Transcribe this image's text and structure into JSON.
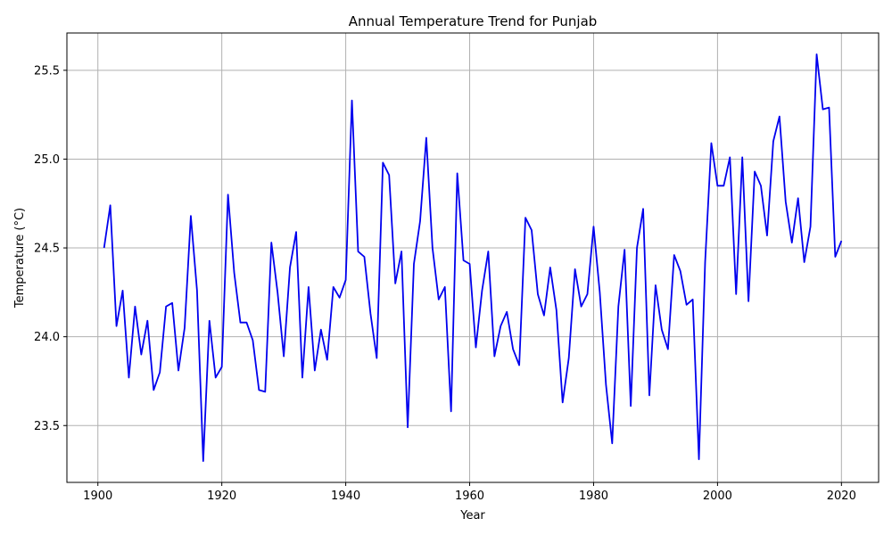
{
  "chart_data": {
    "type": "line",
    "title": "Annual Temperature Trend for Punjab",
    "xlabel": "Year",
    "ylabel": "Temperature (°C)",
    "xlim": [
      1895,
      2026
    ],
    "ylim": [
      23.18,
      25.71
    ],
    "xticks": [
      1900,
      1920,
      1940,
      1960,
      1980,
      2000,
      2020
    ],
    "yticks": [
      23.5,
      24.0,
      24.5,
      25.0,
      25.5
    ],
    "xtick_labels": [
      "1900",
      "1920",
      "1940",
      "1960",
      "1980",
      "2000",
      "2020"
    ],
    "ytick_labels": [
      "23.5",
      "24.0",
      "24.5",
      "25.0",
      "25.5"
    ],
    "grid": true,
    "line_color": "#0000ee",
    "series": [
      {
        "x": [
          1901,
          1902,
          1903,
          1904,
          1905,
          1906,
          1907,
          1908,
          1909,
          1910,
          1911,
          1912,
          1913,
          1914,
          1915,
          1916,
          1917,
          1918,
          1919,
          1920,
          1921,
          1922,
          1923,
          1924,
          1925,
          1926,
          1927,
          1928,
          1929,
          1930,
          1931,
          1932,
          1933,
          1934,
          1935,
          1936,
          1937,
          1938,
          1939,
          1940,
          1941,
          1942,
          1943,
          1944,
          1945,
          1946,
          1947,
          1948,
          1949,
          1950,
          1951,
          1952,
          1953,
          1954,
          1955,
          1956,
          1957,
          1958,
          1959,
          1960,
          1961,
          1962,
          1963,
          1964,
          1965,
          1966,
          1967,
          1968,
          1969,
          1970,
          1971,
          1972,
          1973,
          1974,
          1975,
          1976,
          1977,
          1978,
          1979,
          1980,
          1981,
          1982,
          1983,
          1984,
          1985,
          1986,
          1987,
          1988,
          1989,
          1990,
          1991,
          1992,
          1993,
          1994,
          1995,
          1996,
          1997,
          1998,
          1999,
          2000,
          2001,
          2002,
          2003,
          2004,
          2005,
          2006,
          2007,
          2008,
          2009,
          2010,
          2011,
          2012,
          2013,
          2014,
          2015,
          2016,
          2017,
          2018,
          2019,
          2020
        ],
        "y": [
          24.5,
          24.74,
          24.06,
          24.26,
          23.77,
          24.17,
          23.9,
          24.09,
          23.7,
          23.8,
          24.17,
          24.19,
          23.81,
          24.05,
          24.68,
          24.26,
          23.3,
          24.09,
          23.77,
          23.83,
          24.8,
          24.36,
          24.08,
          24.08,
          23.98,
          23.7,
          23.69,
          24.53,
          24.25,
          23.89,
          24.39,
          24.59,
          23.77,
          24.28,
          23.81,
          24.04,
          23.87,
          24.28,
          24.22,
          24.32,
          25.33,
          24.48,
          24.45,
          24.13,
          23.88,
          24.98,
          24.91,
          24.3,
          24.48,
          23.49,
          24.41,
          24.65,
          25.12,
          24.5,
          24.21,
          24.28,
          23.58,
          24.92,
          24.43,
          24.41,
          23.94,
          24.26,
          24.48,
          23.89,
          24.06,
          24.14,
          23.93,
          23.84,
          24.67,
          24.6,
          24.24,
          24.12,
          24.39,
          24.15,
          23.63,
          23.88,
          24.38,
          24.17,
          24.24,
          24.62,
          24.25,
          23.73,
          23.4,
          24.17,
          24.49,
          23.61,
          24.5,
          24.72,
          23.67,
          24.29,
          24.04,
          23.93,
          24.46,
          24.37,
          24.18,
          24.21,
          23.31,
          24.42,
          25.09,
          24.85,
          24.85,
          25.01,
          24.24,
          25.01,
          24.2,
          24.93,
          24.85,
          24.57,
          25.1,
          25.24,
          24.76,
          24.53,
          24.78,
          24.42,
          24.62,
          25.59,
          25.28,
          25.29,
          24.45,
          24.54
        ]
      }
    ]
  }
}
